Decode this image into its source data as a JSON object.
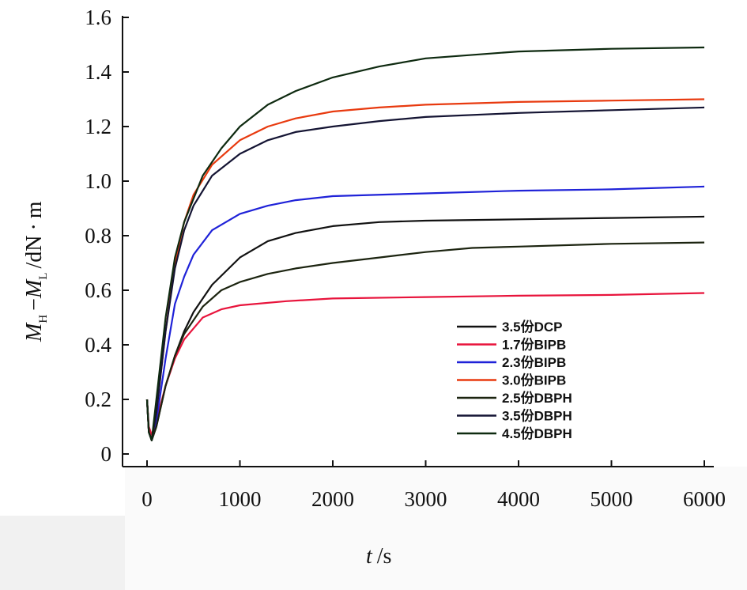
{
  "chart_data": {
    "type": "line",
    "xlabel_var": "t",
    "xlabel_unit": "/s",
    "ylabel": {
      "m_letter": "M",
      "h_sub": "H",
      "minus": "−",
      "l_sub": "L",
      "unit_prefix": "/dN",
      "dot": "·",
      "unit_suffix": "m"
    },
    "xlim": [
      0,
      6000
    ],
    "ylim": [
      0,
      1.6
    ],
    "xticks": [
      "0",
      "1000",
      "2000",
      "3000",
      "4000",
      "5000",
      "6000"
    ],
    "yticks": [
      "0",
      "0.2",
      "0.4",
      "0.6",
      "0.8",
      "1.0",
      "1.2",
      "1.4",
      "1.6"
    ],
    "grid": false,
    "legend_position": "lower-right",
    "series": [
      {
        "name": "3.5份DCP",
        "color": "#111111",
        "points": [
          [
            0,
            0.2
          ],
          [
            20,
            0.08
          ],
          [
            50,
            0.05
          ],
          [
            100,
            0.1
          ],
          [
            200,
            0.25
          ],
          [
            300,
            0.36
          ],
          [
            400,
            0.45
          ],
          [
            500,
            0.52
          ],
          [
            700,
            0.62
          ],
          [
            1000,
            0.72
          ],
          [
            1300,
            0.78
          ],
          [
            1600,
            0.81
          ],
          [
            2000,
            0.835
          ],
          [
            2500,
            0.85
          ],
          [
            3000,
            0.855
          ],
          [
            4000,
            0.86
          ],
          [
            5000,
            0.865
          ],
          [
            6000,
            0.87
          ]
        ]
      },
      {
        "name": "1.7份BIPB",
        "color": "#e8143c",
        "points": [
          [
            0,
            0.2
          ],
          [
            20,
            0.1
          ],
          [
            50,
            0.07
          ],
          [
            100,
            0.12
          ],
          [
            200,
            0.25
          ],
          [
            300,
            0.35
          ],
          [
            400,
            0.42
          ],
          [
            500,
            0.46
          ],
          [
            600,
            0.5
          ],
          [
            800,
            0.53
          ],
          [
            1000,
            0.545
          ],
          [
            1500,
            0.56
          ],
          [
            2000,
            0.57
          ],
          [
            3000,
            0.575
          ],
          [
            4000,
            0.58
          ],
          [
            5000,
            0.583
          ],
          [
            6000,
            0.59
          ]
        ]
      },
      {
        "name": "2.3份BIPB",
        "color": "#1f22d8",
        "points": [
          [
            0,
            0.2
          ],
          [
            20,
            0.08
          ],
          [
            50,
            0.05
          ],
          [
            100,
            0.12
          ],
          [
            200,
            0.35
          ],
          [
            300,
            0.55
          ],
          [
            400,
            0.65
          ],
          [
            500,
            0.73
          ],
          [
            700,
            0.82
          ],
          [
            1000,
            0.88
          ],
          [
            1300,
            0.91
          ],
          [
            1600,
            0.93
          ],
          [
            2000,
            0.945
          ],
          [
            3000,
            0.955
          ],
          [
            4000,
            0.965
          ],
          [
            5000,
            0.97
          ],
          [
            6000,
            0.98
          ]
        ]
      },
      {
        "name": "3.0份BIPB",
        "color": "#e83a0f",
        "points": [
          [
            0,
            0.2
          ],
          [
            20,
            0.08
          ],
          [
            50,
            0.05
          ],
          [
            100,
            0.15
          ],
          [
            200,
            0.45
          ],
          [
            300,
            0.7
          ],
          [
            400,
            0.85
          ],
          [
            500,
            0.95
          ],
          [
            700,
            1.06
          ],
          [
            1000,
            1.15
          ],
          [
            1300,
            1.2
          ],
          [
            1600,
            1.23
          ],
          [
            2000,
            1.255
          ],
          [
            2500,
            1.27
          ],
          [
            3000,
            1.28
          ],
          [
            4000,
            1.29
          ],
          [
            5000,
            1.295
          ],
          [
            6000,
            1.3
          ]
        ]
      },
      {
        "name": "2.5份DBPH",
        "color": "#1c2410",
        "points": [
          [
            0,
            0.2
          ],
          [
            20,
            0.08
          ],
          [
            50,
            0.05
          ],
          [
            100,
            0.1
          ],
          [
            200,
            0.25
          ],
          [
            300,
            0.36
          ],
          [
            400,
            0.44
          ],
          [
            600,
            0.54
          ],
          [
            800,
            0.6
          ],
          [
            1000,
            0.63
          ],
          [
            1300,
            0.66
          ],
          [
            1600,
            0.68
          ],
          [
            2000,
            0.7
          ],
          [
            2500,
            0.72
          ],
          [
            3000,
            0.74
          ],
          [
            3500,
            0.755
          ],
          [
            4000,
            0.76
          ],
          [
            5000,
            0.77
          ],
          [
            6000,
            0.775
          ]
        ]
      },
      {
        "name": "3.5份DBPH",
        "color": "#141433",
        "points": [
          [
            0,
            0.2
          ],
          [
            20,
            0.08
          ],
          [
            50,
            0.05
          ],
          [
            100,
            0.15
          ],
          [
            200,
            0.45
          ],
          [
            300,
            0.68
          ],
          [
            400,
            0.82
          ],
          [
            500,
            0.91
          ],
          [
            700,
            1.02
          ],
          [
            1000,
            1.1
          ],
          [
            1300,
            1.15
          ],
          [
            1600,
            1.18
          ],
          [
            2000,
            1.2
          ],
          [
            2500,
            1.22
          ],
          [
            3000,
            1.235
          ],
          [
            4000,
            1.25
          ],
          [
            5000,
            1.26
          ],
          [
            6000,
            1.27
          ]
        ]
      },
      {
        "name": "4.5份DBPH",
        "color": "#0e2a10",
        "points": [
          [
            0,
            0.2
          ],
          [
            20,
            0.08
          ],
          [
            50,
            0.05
          ],
          [
            100,
            0.2
          ],
          [
            200,
            0.5
          ],
          [
            300,
            0.72
          ],
          [
            400,
            0.85
          ],
          [
            600,
            1.02
          ],
          [
            800,
            1.12
          ],
          [
            1000,
            1.2
          ],
          [
            1300,
            1.28
          ],
          [
            1600,
            1.33
          ],
          [
            2000,
            1.38
          ],
          [
            2500,
            1.42
          ],
          [
            3000,
            1.45
          ],
          [
            4000,
            1.475
          ],
          [
            5000,
            1.485
          ],
          [
            6000,
            1.49
          ]
        ]
      }
    ]
  }
}
